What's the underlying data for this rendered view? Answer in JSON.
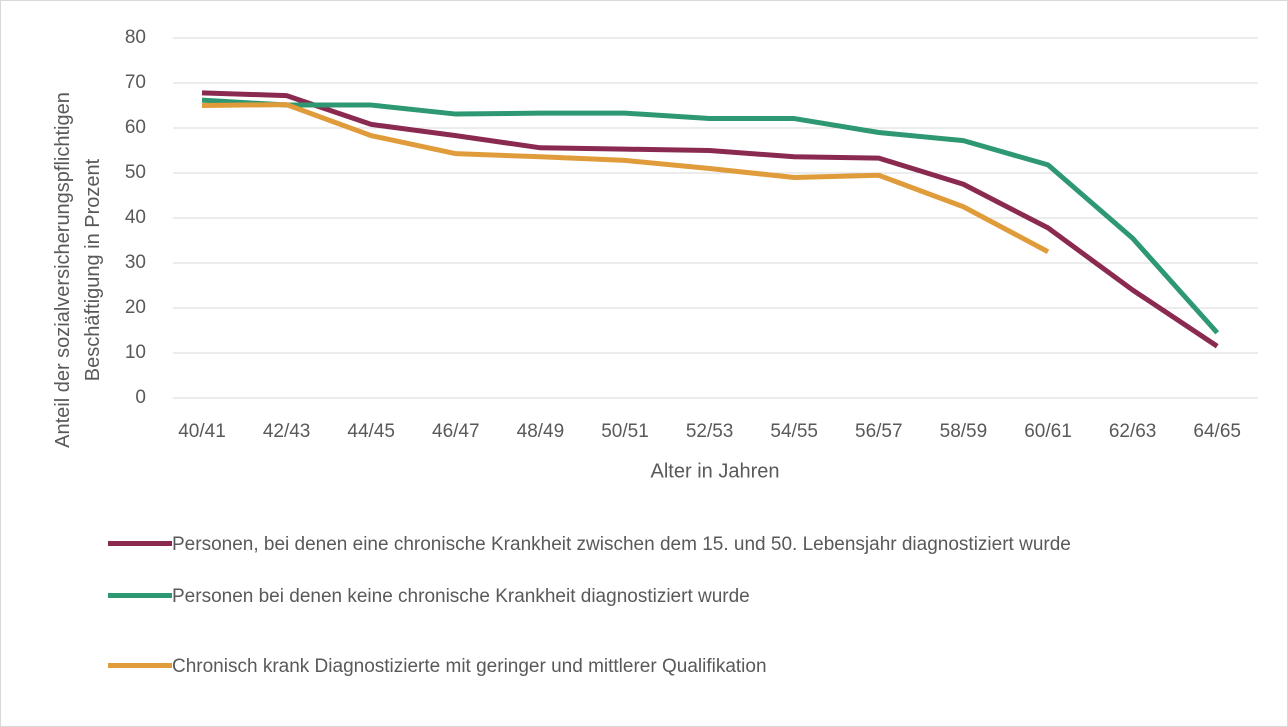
{
  "chart_data": {
    "type": "line",
    "xlabel": "Alter in Jahren",
    "ylabel": "Anteil der sozialversicherungspflichtigen Beschäftigung in Prozent",
    "categories": [
      "40/41",
      "42/43",
      "44/45",
      "46/47",
      "48/49",
      "50/51",
      "52/53",
      "54/55",
      "56/57",
      "58/59",
      "60/61",
      "62/63",
      "64/65"
    ],
    "ylim": [
      0,
      80
    ],
    "yticks": [
      0,
      10,
      20,
      30,
      40,
      50,
      60,
      70,
      80
    ],
    "grid": true,
    "series": [
      {
        "name": "Personen, bei denen eine chronische Krankheit zwischen dem 15. und 50. Lebensjahr diagnostiziert wurde",
        "color": "#8b2a50",
        "values": [
          67.8,
          67.2,
          60.8,
          58.3,
          55.6,
          55.3,
          55.0,
          53.6,
          53.3,
          47.5,
          37.8,
          24.0,
          11.5
        ]
      },
      {
        "name": "Personen bei denen keine chronische Krankheit diagnostiziert wurde",
        "color": "#2e9872",
        "values": [
          66.2,
          65.1,
          65.1,
          63.1,
          63.3,
          63.3,
          62.1,
          62.1,
          59.0,
          57.2,
          51.8,
          35.5,
          14.5
        ]
      },
      {
        "name": "Chronisch krank Diagnostizierte mit geringer und mittlerer Qualifikation",
        "color": "#e09c3a",
        "values": [
          65.0,
          65.2,
          58.3,
          54.3,
          53.6,
          52.8,
          51.0,
          49.0,
          49.5,
          42.5,
          32.5,
          null,
          null
        ]
      }
    ]
  }
}
